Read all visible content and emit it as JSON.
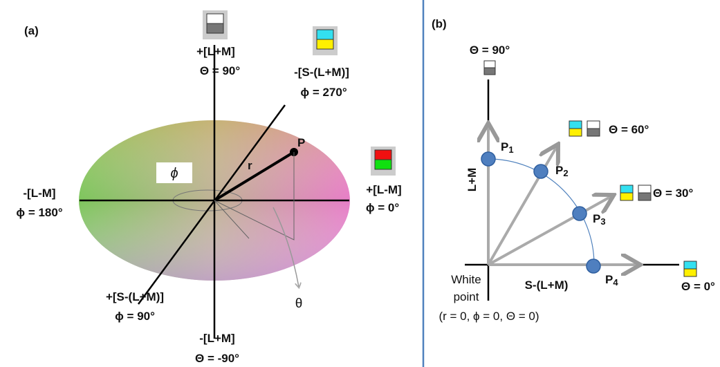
{
  "panel_a": {
    "label": "(a)",
    "top_axis": {
      "name": "+[L+M]",
      "angle": "Θ = 90°"
    },
    "bottom_axis": {
      "name": "-[L+M]",
      "angle": "Θ = -90°"
    },
    "left_axis": {
      "name": "-[L-M]",
      "angle": "ϕ = 180°"
    },
    "right_axis": {
      "name": "+[L-M]",
      "angle": "ϕ = 0°"
    },
    "back_axis": {
      "name": "-[S-(L+M)]",
      "angle": "ϕ = 270°"
    },
    "front_axis": {
      "name": "+[S-(L+M)]",
      "angle": "ϕ = 90°"
    },
    "point": "P",
    "radius": "r",
    "phi_box": "ϕ",
    "theta": "θ"
  },
  "panel_b": {
    "label": "(b)",
    "top": "Θ = 90°",
    "y_axis": "L+M",
    "x_axis": "S-(L+M)",
    "points": [
      {
        "base": "P",
        "sub": "1"
      },
      {
        "base": "P",
        "sub": "2"
      },
      {
        "base": "P",
        "sub": "3"
      },
      {
        "base": "P",
        "sub": "4"
      }
    ],
    "angles": [
      "Θ = 60°",
      "Θ = 30°",
      "Θ = 0°"
    ],
    "origin": [
      "White",
      "point"
    ],
    "origin_coords": "(r = 0, ϕ = 0, Θ = 0)"
  }
}
